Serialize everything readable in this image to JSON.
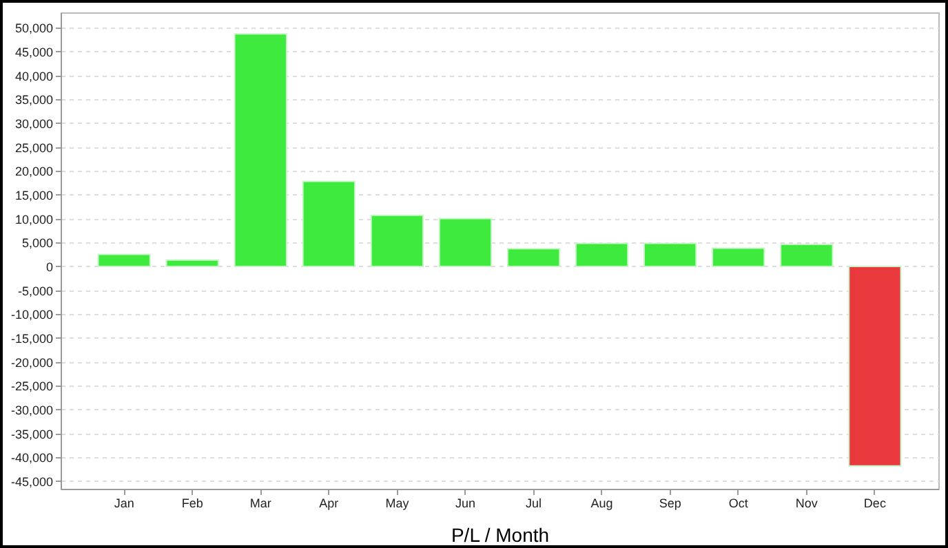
{
  "chart_data": {
    "type": "bar",
    "xlabel": "P/L / Month",
    "categories": [
      "Jan",
      "Feb",
      "Mar",
      "Apr",
      "May",
      "Jun",
      "Jul",
      "Aug",
      "Sep",
      "Oct",
      "Nov",
      "Dec"
    ],
    "values": [
      2500,
      1300,
      48700,
      17800,
      10700,
      10000,
      3700,
      4800,
      4800,
      3800,
      4600,
      -41800
    ],
    "colors": [
      "#3dea3d",
      "#3dea3d",
      "#3dea3d",
      "#3dea3d",
      "#3dea3d",
      "#3dea3d",
      "#3dea3d",
      "#3dea3d",
      "#3dea3d",
      "#3dea3d",
      "#3dea3d",
      "#e8393d"
    ],
    "ylim": [
      -46600,
      53200
    ],
    "yticks": [
      {
        "value": -45000,
        "label": "-45,000"
      },
      {
        "value": -40000,
        "label": "-40,000"
      },
      {
        "value": -35000,
        "label": "-35,000"
      },
      {
        "value": -30000,
        "label": "-30,000"
      },
      {
        "value": -25000,
        "label": "-25,000"
      },
      {
        "value": -20000,
        "label": "-20,000"
      },
      {
        "value": -15000,
        "label": "-15,000"
      },
      {
        "value": -10000,
        "label": "-10,000"
      },
      {
        "value": -5000,
        "label": "-5,000"
      },
      {
        "value": 0,
        "label": "0"
      },
      {
        "value": 5000,
        "label": "5,000"
      },
      {
        "value": 10000,
        "label": "10,000"
      },
      {
        "value": 15000,
        "label": "15,000"
      },
      {
        "value": 20000,
        "label": "20,000"
      },
      {
        "value": 25000,
        "label": "25,000"
      },
      {
        "value": 30000,
        "label": "30,000"
      },
      {
        "value": 35000,
        "label": "35,000"
      },
      {
        "value": 40000,
        "label": "40,000"
      },
      {
        "value": 45000,
        "label": "45,000"
      },
      {
        "value": 50000,
        "label": "50,000"
      }
    ],
    "grid": "y"
  }
}
